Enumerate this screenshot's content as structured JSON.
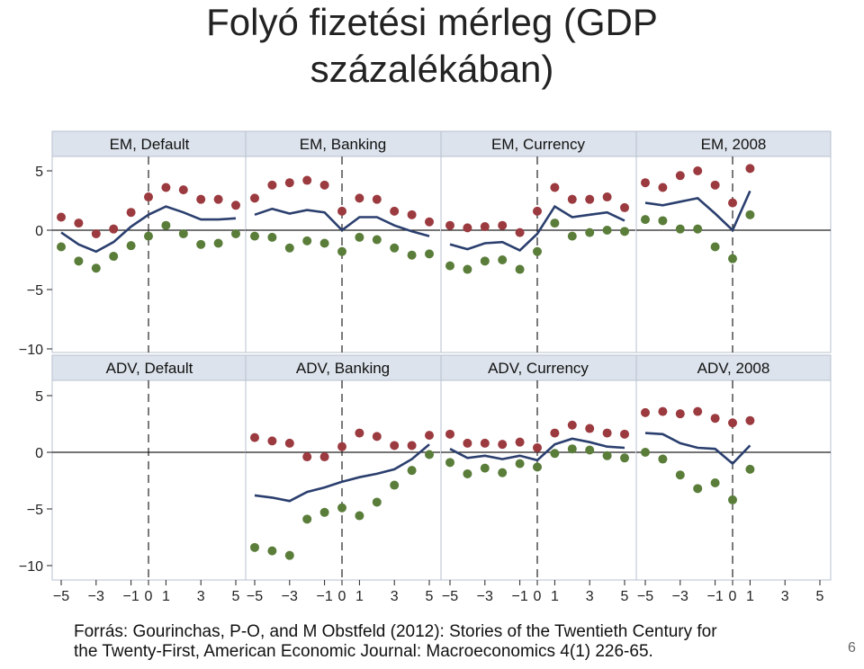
{
  "title_line1": "Folyó fizetési mérleg (GDP",
  "title_line2": "százalékában)",
  "source_line1": "Forrás: Gourinchas, P-O, and M Obstfeld (2012): Stories of the Twentieth Century for",
  "source_line2": "the Twenty-First, American Economic Journal: Macroeconomics 4(1) 226-65.",
  "page_number": "6",
  "colors": {
    "line": "#2b3f6e",
    "upper_dots": "#9b3a3f",
    "lower_dots": "#5a7d3a",
    "header_bg": "#dce3ec"
  },
  "chart_data": {
    "type": "scatter",
    "x_range": [
      -5,
      5
    ],
    "x_ticks": [
      -5,
      -3,
      -1,
      0,
      1,
      3,
      5
    ],
    "x_tick_labels": [
      "−5",
      "−3",
      "−1",
      "0",
      "1",
      "3",
      "5"
    ],
    "y_range": [
      -10,
      5
    ],
    "y_ticks": [
      5,
      0,
      -5,
      -10
    ],
    "y_tick_labels": [
      "5",
      "0",
      "−5",
      "−10"
    ],
    "grid": false,
    "reference_lines": {
      "y0": "solid",
      "x0": "dashed"
    },
    "panels": [
      {
        "title": "EM, Default",
        "row": 0,
        "col": 0,
        "x": [
          -5,
          -4,
          -3,
          -2,
          -1,
          0,
          1,
          2,
          3,
          4,
          5
        ],
        "upper": [
          1.1,
          0.6,
          -0.3,
          0.1,
          1.5,
          2.8,
          3.6,
          3.4,
          2.6,
          2.6,
          2.1
        ],
        "mid": [
          -0.2,
          -1.2,
          -1.8,
          -1.0,
          0.3,
          1.3,
          2.0,
          1.5,
          0.9,
          0.9,
          1.0
        ],
        "lower": [
          -1.4,
          -2.6,
          -3.2,
          -2.2,
          -1.3,
          -0.5,
          0.4,
          -0.3,
          -1.2,
          -1.1,
          -0.3
        ]
      },
      {
        "title": "EM, Banking",
        "row": 0,
        "col": 1,
        "x": [
          -5,
          -4,
          -3,
          -2,
          -1,
          0,
          1,
          2,
          3,
          4,
          5
        ],
        "upper": [
          2.7,
          3.8,
          4.0,
          4.2,
          3.8,
          1.6,
          2.7,
          2.6,
          1.6,
          1.3,
          0.7
        ],
        "mid": [
          1.3,
          1.8,
          1.4,
          1.7,
          1.5,
          0.0,
          1.1,
          1.1,
          0.4,
          -0.1,
          -0.5
        ],
        "lower": [
          -0.5,
          -0.6,
          -1.5,
          -0.9,
          -1.1,
          -1.8,
          -0.6,
          -0.8,
          -1.5,
          -2.1,
          -2.0
        ]
      },
      {
        "title": "EM, Currency",
        "row": 0,
        "col": 2,
        "x": [
          -5,
          -4,
          -3,
          -2,
          -1,
          0,
          1,
          2,
          3,
          4,
          5
        ],
        "upper": [
          0.4,
          0.2,
          0.3,
          0.4,
          -0.2,
          1.6,
          3.6,
          2.6,
          2.6,
          2.8,
          1.9
        ],
        "mid": [
          -1.2,
          -1.6,
          -1.1,
          -1.0,
          -1.7,
          -0.3,
          2.0,
          1.1,
          1.3,
          1.5,
          0.8
        ],
        "lower": [
          -3.0,
          -3.3,
          -2.6,
          -2.5,
          -3.3,
          -1.8,
          0.6,
          -0.5,
          -0.2,
          0.0,
          -0.1
        ]
      },
      {
        "title": "EM, 2008",
        "row": 0,
        "col": 3,
        "x": [
          -5,
          -4,
          -3,
          -2,
          -1,
          0,
          1
        ],
        "upper": [
          4.0,
          3.6,
          4.6,
          5.0,
          3.8,
          2.3,
          5.2
        ],
        "mid": [
          2.3,
          2.1,
          2.4,
          2.7,
          1.4,
          0.0,
          3.3
        ],
        "lower": [
          0.9,
          0.8,
          0.1,
          0.1,
          -1.4,
          -2.4,
          1.3
        ]
      },
      {
        "title": "ADV, Default",
        "row": 1,
        "col": 0,
        "x": [],
        "upper": [],
        "mid": [],
        "lower": []
      },
      {
        "title": "ADV, Banking",
        "row": 1,
        "col": 1,
        "x": [
          -5,
          -4,
          -3,
          -2,
          -1,
          0,
          1,
          2,
          3,
          4,
          5
        ],
        "upper": [
          1.3,
          1.0,
          0.8,
          -0.4,
          -0.4,
          0.5,
          1.7,
          1.4,
          0.6,
          0.6,
          1.5
        ],
        "mid": [
          -3.8,
          -4.0,
          -4.3,
          -3.5,
          -3.1,
          -2.6,
          -2.2,
          -1.9,
          -1.5,
          -0.6,
          0.7
        ],
        "lower": [
          -8.4,
          -8.7,
          -9.1,
          -5.9,
          -5.3,
          -4.9,
          -5.6,
          -4.4,
          -2.9,
          -1.6,
          -0.2
        ]
      },
      {
        "title": "ADV, Currency",
        "row": 1,
        "col": 2,
        "x": [
          -5,
          -4,
          -3,
          -2,
          -1,
          0,
          1,
          2,
          3,
          4,
          5
        ],
        "upper": [
          1.6,
          0.8,
          0.8,
          0.7,
          0.9,
          0.4,
          1.7,
          2.4,
          2.1,
          1.7,
          1.6
        ],
        "mid": [
          0.3,
          -0.5,
          -0.3,
          -0.6,
          -0.3,
          -0.7,
          0.7,
          1.2,
          0.9,
          0.5,
          0.4
        ],
        "lower": [
          -0.9,
          -1.9,
          -1.4,
          -1.8,
          -1.0,
          -1.3,
          -0.1,
          0.3,
          0.2,
          -0.3,
          -0.5
        ]
      },
      {
        "title": "ADV, 2008",
        "row": 1,
        "col": 3,
        "x": [
          -5,
          -4,
          -3,
          -2,
          -1,
          0,
          1
        ],
        "upper": [
          3.5,
          3.6,
          3.4,
          3.6,
          3.0,
          2.6,
          2.8
        ],
        "mid": [
          1.7,
          1.6,
          0.8,
          0.4,
          0.3,
          -1.0,
          0.6
        ],
        "lower": [
          0.0,
          -0.6,
          -2.0,
          -3.2,
          -2.7,
          -4.2,
          -1.5
        ]
      }
    ]
  }
}
